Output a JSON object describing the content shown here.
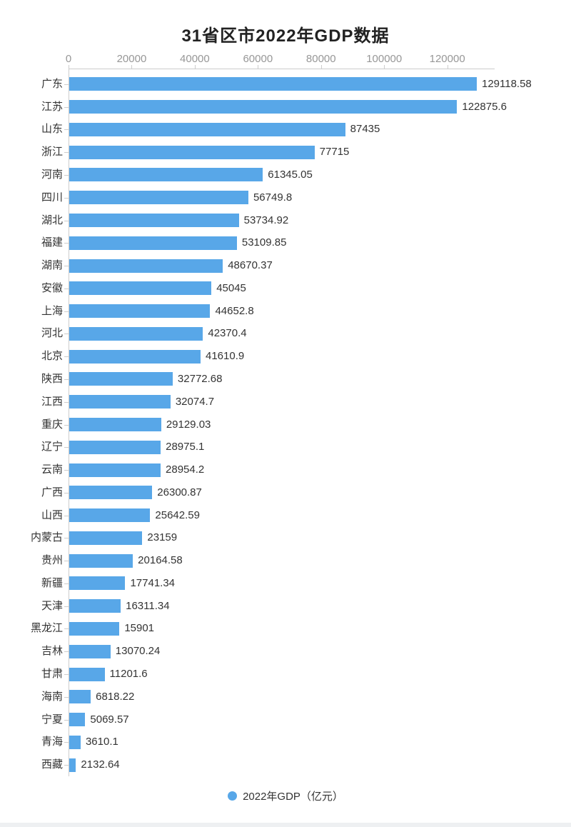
{
  "title": "31省区市2022年GDP数据",
  "legend": {
    "label": "2022年GDP（亿元）"
  },
  "colors": {
    "bar": "#58a7e8",
    "axis_line": "#cccccc",
    "tick_label": "#979797",
    "category_label": "#333333",
    "value_label": "#333333",
    "title": "#222222"
  },
  "chart_data": {
    "type": "bar",
    "orientation": "horizontal",
    "title": "31省区市2022年GDP数据",
    "legend": [
      "2022年GDP（亿元）"
    ],
    "unit": "亿元",
    "x_axis": {
      "position": "top",
      "ticks": [
        0,
        20000,
        40000,
        60000,
        80000,
        100000,
        120000
      ],
      "max": 135000,
      "grid": false
    },
    "categories": [
      "广东",
      "江苏",
      "山东",
      "浙江",
      "河南",
      "四川",
      "湖北",
      "福建",
      "湖南",
      "安徽",
      "上海",
      "河北",
      "北京",
      "陕西",
      "江西",
      "重庆",
      "辽宁",
      "云南",
      "广西",
      "山西",
      "内蒙古",
      "贵州",
      "新疆",
      "天津",
      "黑龙江",
      "吉林",
      "甘肃",
      "海南",
      "宁夏",
      "青海",
      "西藏"
    ],
    "values": [
      129118.58,
      122875.6,
      87435,
      77715,
      61345.05,
      56749.8,
      53734.92,
      53109.85,
      48670.37,
      45045,
      44652.8,
      42370.4,
      41610.9,
      32772.68,
      32074.7,
      29129.03,
      28975.1,
      28954.2,
      26300.87,
      25642.59,
      23159,
      20164.58,
      17741.34,
      16311.34,
      15901,
      13070.24,
      11201.6,
      6818.22,
      5069.57,
      3610.1,
      2132.64
    ],
    "value_labels": [
      "129118.58",
      "122875.6",
      "87435",
      "77715",
      "61345.05",
      "56749.8",
      "53734.92",
      "53109.85",
      "48670.37",
      "45045",
      "44652.8",
      "42370.4",
      "41610.9",
      "32772.68",
      "32074.7",
      "29129.03",
      "28975.1",
      "28954.2",
      "26300.87",
      "25642.59",
      "23159",
      "20164.58",
      "17741.34",
      "16311.34",
      "15901",
      "13070.24",
      "11201.6",
      "6818.22",
      "5069.57",
      "3610.1",
      "2132.64"
    ]
  }
}
